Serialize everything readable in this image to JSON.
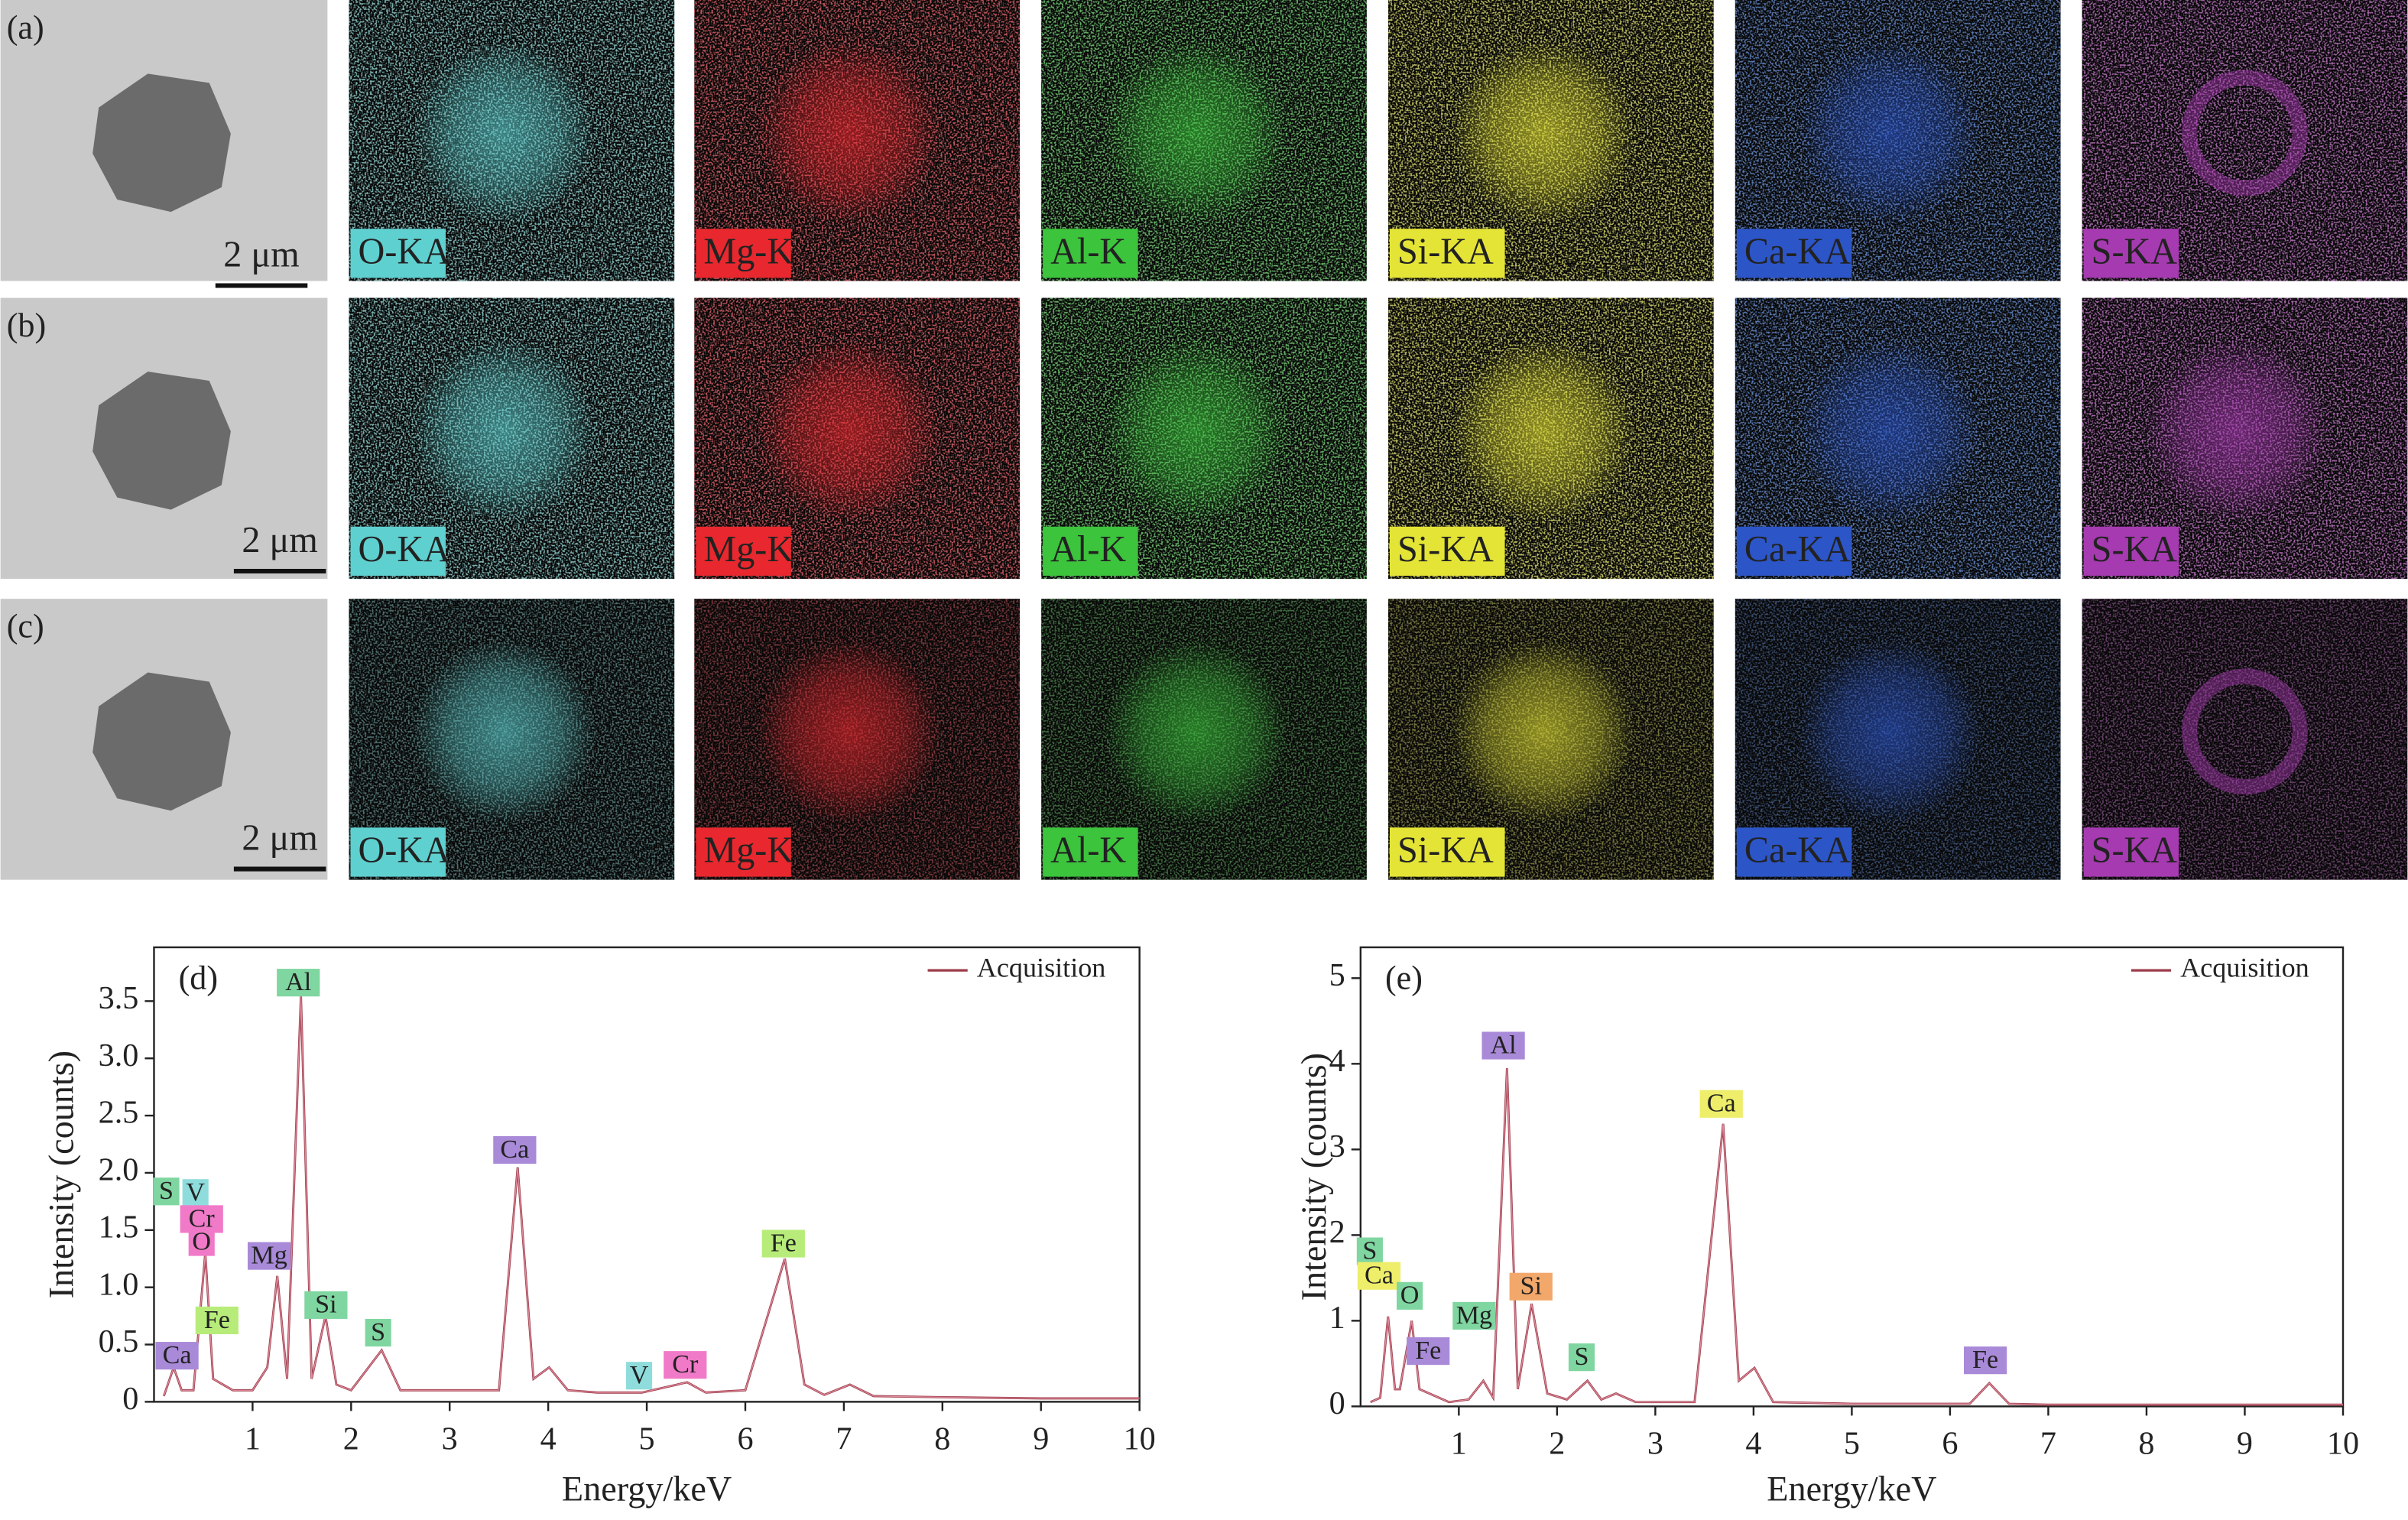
{
  "panels": [
    {
      "label": "(a)",
      "scale_bar": "2 μm",
      "maps": [
        "O-KA",
        "Mg-K",
        "Al-K",
        "Si-KA",
        "Ca-KA",
        "S-KA"
      ]
    },
    {
      "label": "(b)",
      "scale_bar": "2 μm",
      "maps": [
        "O-KA",
        "Mg-K",
        "Al-K",
        "Si-KA",
        "Ca-KA",
        "S-KA"
      ]
    },
    {
      "label": "(c)",
      "scale_bar": "2 μm",
      "maps": [
        "O-KA",
        "Mg-K",
        "Al-K",
        "Si-KA",
        "Ca-KA",
        "S-KA"
      ]
    }
  ],
  "map_colors": [
    "#5fd0d0",
    "#e8282e",
    "#3cc43c",
    "#e4e436",
    "#2c55c8",
    "#a63ab0"
  ],
  "chart_data": [
    {
      "type": "line",
      "label": "(d)",
      "xlabel": "Energy/keV",
      "ylabel": "Intensity (counts)",
      "x": [
        0.1,
        0.2,
        0.28,
        0.4,
        0.52,
        0.6,
        0.7,
        0.8,
        1.0,
        1.15,
        1.25,
        1.35,
        1.49,
        1.6,
        1.74,
        1.85,
        2.0,
        2.31,
        2.5,
        3.0,
        3.5,
        3.69,
        3.85,
        4.01,
        4.2,
        4.5,
        4.95,
        5.41,
        5.6,
        6.0,
        6.4,
        6.6,
        6.8,
        7.06,
        7.3,
        8,
        9,
        10
      ],
      "series": [
        {
          "name": "Acquisition",
          "color": "#9b3b4a",
          "values": [
            0.05,
            0.3,
            0.1,
            0.1,
            1.3,
            0.2,
            0.15,
            0.1,
            0.1,
            0.3,
            1.1,
            0.2,
            3.55,
            0.2,
            0.75,
            0.15,
            0.1,
            0.45,
            0.1,
            0.1,
            0.1,
            2.05,
            0.2,
            0.3,
            0.1,
            0.08,
            0.08,
            0.17,
            0.08,
            0.1,
            1.25,
            0.15,
            0.06,
            0.15,
            0.05,
            0.04,
            0.03,
            0.03
          ]
        }
      ],
      "xlim": [
        0,
        10
      ],
      "ylim": [
        0,
        3.97
      ],
      "xticks": [
        1,
        2,
        3,
        4,
        5,
        6,
        7,
        8,
        9,
        10
      ],
      "yticks": [
        0,
        0.5,
        {
          "value": 1,
          "label": "1.0"
        },
        1.5,
        {
          "value": 2,
          "label": "2.0"
        },
        2.5,
        {
          "value": 3,
          "label": "3.0"
        },
        3.5
      ],
      "legend": "upper right",
      "annotations": [
        {
          "text": "S",
          "color": "#7fd6a0"
        },
        {
          "text": "V",
          "color": "#8fdcdc"
        },
        {
          "text": "Cr",
          "color": "#f07ac8"
        },
        {
          "text": "O",
          "color": "#f07ac8"
        },
        {
          "text": "Ca",
          "color": "#a98ad8"
        },
        {
          "text": "Fe",
          "color": "#b8ec7a"
        },
        {
          "text": "Mg",
          "color": "#a98ad8"
        },
        {
          "text": "Al",
          "color": "#7fd6a0"
        },
        {
          "text": "Si",
          "color": "#7fd6a0"
        },
        {
          "text": "S",
          "color": "#7fd6a0"
        },
        {
          "text": "Ca",
          "color": "#a98ad8"
        },
        {
          "text": "V",
          "color": "#8fdcdc"
        },
        {
          "text": "Cr",
          "color": "#f07ac8"
        },
        {
          "text": "Fe",
          "color": "#b8ec7a"
        }
      ]
    },
    {
      "type": "line",
      "label": "(e)",
      "xlabel": "Energy/keV",
      "ylabel": "Intensity (counts)",
      "x": [
        0.1,
        0.2,
        0.28,
        0.35,
        0.4,
        0.52,
        0.6,
        0.7,
        0.9,
        1.1,
        1.25,
        1.35,
        1.49,
        1.6,
        1.74,
        1.9,
        2.1,
        2.31,
        2.45,
        2.6,
        2.8,
        3.4,
        3.69,
        3.85,
        4.01,
        4.2,
        5,
        6.2,
        6.4,
        6.6,
        7,
        10
      ],
      "series": [
        {
          "name": "Acquisition",
          "color": "#9b3b4a",
          "values": [
            0.05,
            0.1,
            1.05,
            0.2,
            0.2,
            1.0,
            0.2,
            0.15,
            0.05,
            0.08,
            0.3,
            0.1,
            3.95,
            0.2,
            1.2,
            0.15,
            0.08,
            0.3,
            0.08,
            0.15,
            0.05,
            0.05,
            3.3,
            0.3,
            0.45,
            0.05,
            0.03,
            0.03,
            0.27,
            0.03,
            0.02,
            0.02
          ]
        }
      ],
      "xlim": [
        0,
        10
      ],
      "ylim": [
        0,
        5.36
      ],
      "xticks": [
        1,
        2,
        3,
        4,
        5,
        6,
        7,
        8,
        9,
        10
      ],
      "yticks": [
        0,
        1,
        2,
        3,
        4,
        5
      ],
      "legend": "upper right",
      "annotations": [
        {
          "text": "Al",
          "color": "#a98ad8"
        },
        {
          "text": "Ca",
          "color": "#eeee6a"
        },
        {
          "text": "S",
          "color": "#7fd6a0"
        },
        {
          "text": "Ca",
          "color": "#eeee6a"
        },
        {
          "text": "O",
          "color": "#7fd6a0"
        },
        {
          "text": "Mg",
          "color": "#7fd6a0"
        },
        {
          "text": "Si",
          "color": "#f2a86a"
        },
        {
          "text": "Fe",
          "color": "#a98ad8"
        },
        {
          "text": "S",
          "color": "#7fd6a0"
        },
        {
          "text": "Fe",
          "color": "#a98ad8"
        }
      ]
    }
  ]
}
